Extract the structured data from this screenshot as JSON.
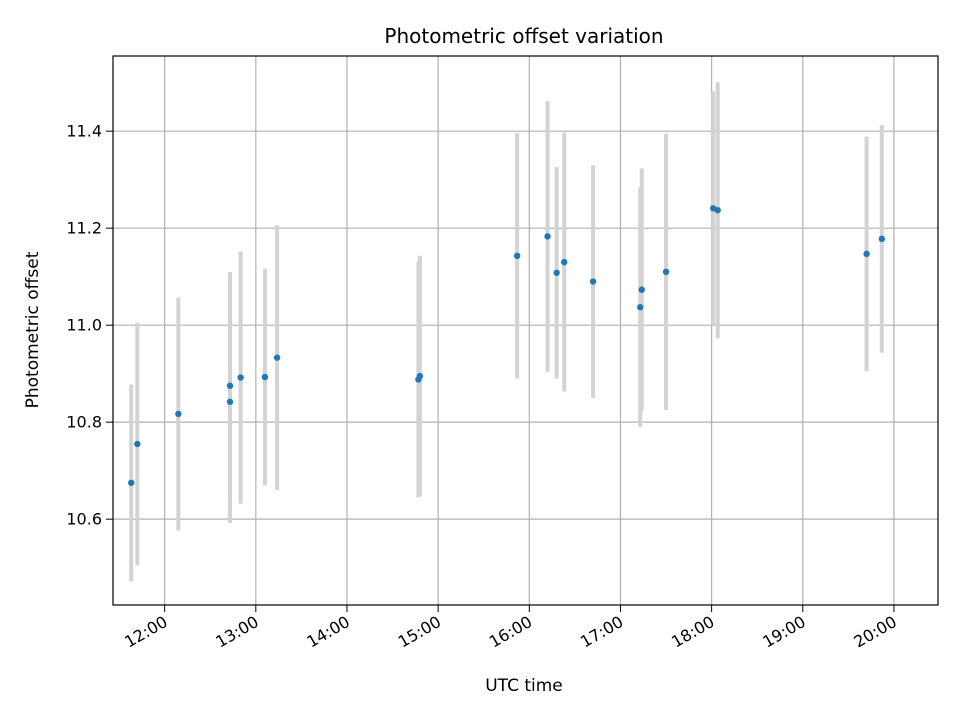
{
  "chart_data": {
    "type": "scatter",
    "title": "Photometric offset variation",
    "xlabel": "UTC time",
    "ylabel": "Photometric offset",
    "x_tick_labels": [
      "12:00",
      "13:00",
      "14:00",
      "15:00",
      "16:00",
      "17:00",
      "18:00",
      "19:00",
      "20:00"
    ],
    "y_tick_labels": [
      "10.6",
      "10.8",
      "11.0",
      "11.2",
      "11.4"
    ],
    "y_ticks": [
      10.6,
      10.8,
      11.0,
      11.2,
      11.4
    ],
    "xlim": [
      "11:26",
      "20:29"
    ],
    "ylim": [
      10.423,
      11.555
    ],
    "grid": true,
    "error_bar_color": "#d3d3d3",
    "marker_color": "#1f77b4",
    "points": [
      {
        "x": "11:38",
        "y": 10.675,
        "ylo": 10.472,
        "yhi": 10.878
      },
      {
        "x": "11:42",
        "y": 10.755,
        "ylo": 10.505,
        "yhi": 11.005
      },
      {
        "x": "12:09",
        "y": 10.817,
        "ylo": 10.577,
        "yhi": 11.057
      },
      {
        "x": "12:43",
        "y": 10.842,
        "ylo": 10.592,
        "yhi": 11.092
      },
      {
        "x": "12:43",
        "y": 10.875,
        "ylo": 10.64,
        "yhi": 11.11
      },
      {
        "x": "12:50",
        "y": 10.892,
        "ylo": 10.632,
        "yhi": 11.152
      },
      {
        "x": "13:06",
        "y": 10.893,
        "ylo": 10.67,
        "yhi": 11.116
      },
      {
        "x": "13:14",
        "y": 10.933,
        "ylo": 10.66,
        "yhi": 11.206
      },
      {
        "x": "14:47",
        "y": 10.888,
        "ylo": 10.645,
        "yhi": 11.131
      },
      {
        "x": "14:48",
        "y": 10.895,
        "ylo": 10.647,
        "yhi": 11.143
      },
      {
        "x": "15:52",
        "y": 11.143,
        "ylo": 10.89,
        "yhi": 11.396
      },
      {
        "x": "16:12",
        "y": 11.183,
        "ylo": 10.904,
        "yhi": 11.462
      },
      {
        "x": "16:18",
        "y": 11.108,
        "ylo": 10.89,
        "yhi": 11.326
      },
      {
        "x": "16:23",
        "y": 11.13,
        "ylo": 10.863,
        "yhi": 11.397
      },
      {
        "x": "16:42",
        "y": 11.09,
        "ylo": 10.85,
        "yhi": 11.33
      },
      {
        "x": "17:13",
        "y": 11.037,
        "ylo": 10.79,
        "yhi": 11.284
      },
      {
        "x": "17:14",
        "y": 11.073,
        "ylo": 10.823,
        "yhi": 11.323
      },
      {
        "x": "17:30",
        "y": 11.11,
        "ylo": 10.825,
        "yhi": 11.395
      },
      {
        "x": "18:01",
        "y": 11.241,
        "ylo": 11.0,
        "yhi": 11.482
      },
      {
        "x": "18:04",
        "y": 11.237,
        "ylo": 10.973,
        "yhi": 11.501
      },
      {
        "x": "19:42",
        "y": 11.147,
        "ylo": 10.905,
        "yhi": 11.389
      },
      {
        "x": "19:52",
        "y": 11.178,
        "ylo": 10.943,
        "yhi": 11.413
      }
    ]
  }
}
